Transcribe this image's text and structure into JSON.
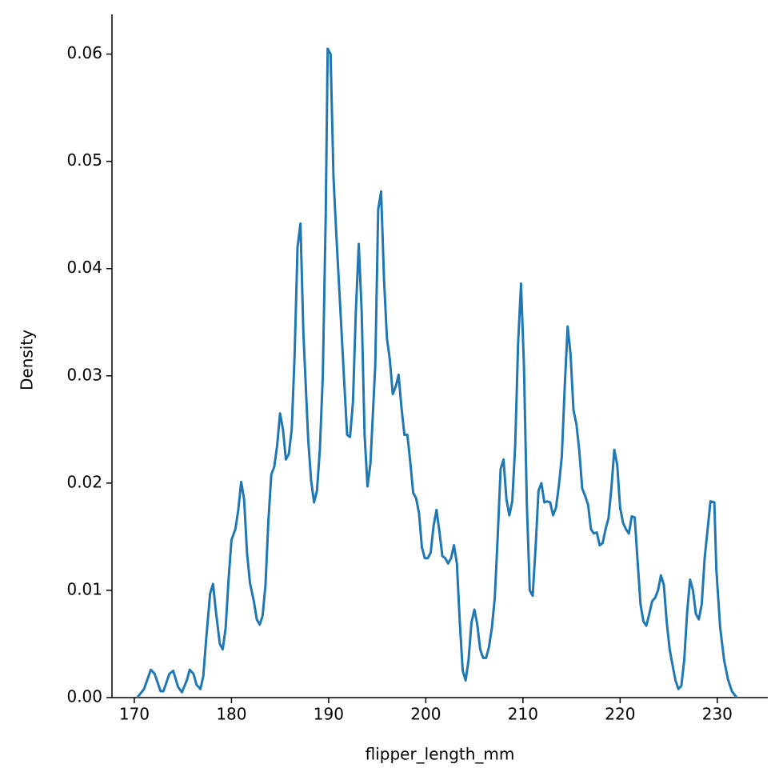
{
  "chart_data": {
    "type": "line",
    "xlabel": "flipper_length_mm",
    "ylabel": "Density",
    "xlim": [
      167.7,
      235.2
    ],
    "ylim": [
      0,
      0.0637
    ],
    "xticks": [
      170,
      180,
      190,
      200,
      210,
      220,
      230
    ],
    "yticks": [
      {
        "value": 0,
        "label": "0.00"
      },
      {
        "value": 0.01,
        "label": "0.01"
      },
      {
        "value": 0.02,
        "label": "0.02"
      },
      {
        "value": 0.03,
        "label": "0.03"
      },
      {
        "value": 0.04,
        "label": "0.04"
      },
      {
        "value": 0.05,
        "label": "0.05"
      },
      {
        "value": 0.06,
        "label": "0.06"
      }
    ],
    "x": [
      170.3,
      171.0,
      171.7,
      172.1,
      172.7,
      173.0,
      173.6,
      174.0,
      174.5,
      174.9,
      175.4,
      175.7,
      176.1,
      176.4,
      176.8,
      177.1,
      177.4,
      177.8,
      178.1,
      178.4,
      178.8,
      179.1,
      179.4,
      179.7,
      180.0,
      180.4,
      180.7,
      181.0,
      181.3,
      181.6,
      181.9,
      182.3,
      182.6,
      182.9,
      183.2,
      183.5,
      183.8,
      184.1,
      184.4,
      184.7,
      185.0,
      185.3,
      185.6,
      185.9,
      186.2,
      186.5,
      186.8,
      187.1,
      187.4,
      187.9,
      188.2,
      188.5,
      188.8,
      189.1,
      189.4,
      189.7,
      189.9,
      190.2,
      190.5,
      190.8,
      191.1,
      191.6,
      191.9,
      192.2,
      192.5,
      192.8,
      193.1,
      193.4,
      193.7,
      194.0,
      194.3,
      194.8,
      195.1,
      195.4,
      195.7,
      196.0,
      196.3,
      196.6,
      196.9,
      197.2,
      197.5,
      197.8,
      198.1,
      198.4,
      198.7,
      199.0,
      199.3,
      199.6,
      199.9,
      200.2,
      200.5,
      200.8,
      201.1,
      201.4,
      201.7,
      202.0,
      202.3,
      202.6,
      202.9,
      203.2,
      203.5,
      203.8,
      204.1,
      204.4,
      204.7,
      205.0,
      205.3,
      205.6,
      205.9,
      206.2,
      206.5,
      206.8,
      207.1,
      207.4,
      207.7,
      208.0,
      208.3,
      208.6,
      208.9,
      209.2,
      209.5,
      209.8,
      210.1,
      210.4,
      210.7,
      211.0,
      211.3,
      211.6,
      211.9,
      212.2,
      212.5,
      212.8,
      213.1,
      213.4,
      213.7,
      214.0,
      214.3,
      214.6,
      214.9,
      215.2,
      215.5,
      215.8,
      216.1,
      216.4,
      216.7,
      217.0,
      217.3,
      217.6,
      217.9,
      218.2,
      218.5,
      218.8,
      219.1,
      219.4,
      219.7,
      220.0,
      220.3,
      220.6,
      220.9,
      221.2,
      221.5,
      221.8,
      222.1,
      222.4,
      222.7,
      223.0,
      223.3,
      223.6,
      223.9,
      224.2,
      224.5,
      224.8,
      225.1,
      225.4,
      225.7,
      226.0,
      226.3,
      226.6,
      226.9,
      227.2,
      227.5,
      227.8,
      228.1,
      228.4,
      228.7,
      229.3,
      229.7,
      229.9,
      230.3,
      230.7,
      231.1,
      231.5,
      232.0
    ],
    "series": [
      {
        "color": "#1f77b4",
        "values": [
          0,
          0.0008,
          0.0026,
          0.0022,
          0.0006,
          0.0006,
          0.0022,
          0.0025,
          0.001,
          0.0005,
          0.0016,
          0.0026,
          0.0022,
          0.0012,
          0.0008,
          0.002,
          0.0055,
          0.0097,
          0.0106,
          0.008,
          0.005,
          0.0045,
          0.0065,
          0.011,
          0.0147,
          0.0157,
          0.0175,
          0.0201,
          0.0185,
          0.0135,
          0.0107,
          0.009,
          0.0073,
          0.0068,
          0.0076,
          0.0105,
          0.0165,
          0.0208,
          0.0215,
          0.0235,
          0.0265,
          0.025,
          0.0222,
          0.0227,
          0.025,
          0.032,
          0.042,
          0.0442,
          0.034,
          0.024,
          0.0202,
          0.0182,
          0.0193,
          0.0232,
          0.03,
          0.045,
          0.0605,
          0.06,
          0.0485,
          0.043,
          0.038,
          0.0295,
          0.0245,
          0.0243,
          0.0275,
          0.036,
          0.0423,
          0.036,
          0.0245,
          0.0197,
          0.0218,
          0.031,
          0.0455,
          0.0472,
          0.039,
          0.0335,
          0.0315,
          0.0283,
          0.029,
          0.0301,
          0.027,
          0.0245,
          0.0245,
          0.022,
          0.0191,
          0.0186,
          0.0172,
          0.014,
          0.013,
          0.013,
          0.0135,
          0.016,
          0.0175,
          0.0155,
          0.0132,
          0.013,
          0.0125,
          0.013,
          0.0142,
          0.0125,
          0.007,
          0.0025,
          0.0016,
          0.0035,
          0.007,
          0.0082,
          0.0068,
          0.0045,
          0.0037,
          0.0037,
          0.0047,
          0.0065,
          0.0093,
          0.015,
          0.0213,
          0.0222,
          0.0185,
          0.017,
          0.0183,
          0.0235,
          0.033,
          0.0386,
          0.031,
          0.018,
          0.01,
          0.0095,
          0.014,
          0.0193,
          0.02,
          0.0182,
          0.0183,
          0.0182,
          0.017,
          0.0177,
          0.0198,
          0.0225,
          0.029,
          0.0346,
          0.032,
          0.0268,
          0.0255,
          0.023,
          0.0195,
          0.0188,
          0.018,
          0.0157,
          0.0153,
          0.0154,
          0.0142,
          0.0144,
          0.0157,
          0.0167,
          0.0195,
          0.0231,
          0.0217,
          0.0177,
          0.0163,
          0.0157,
          0.0153,
          0.0169,
          0.0168,
          0.0127,
          0.0087,
          0.0071,
          0.0067,
          0.0078,
          0.009,
          0.0093,
          0.01,
          0.0114,
          0.0105,
          0.007,
          0.0045,
          0.003,
          0.0016,
          0.0008,
          0.0011,
          0.0035,
          0.008,
          0.011,
          0.01,
          0.0078,
          0.0073,
          0.0087,
          0.013,
          0.0183,
          0.0182,
          0.012,
          0.0065,
          0.0035,
          0.0017,
          0.0006,
          0
        ]
      }
    ]
  }
}
